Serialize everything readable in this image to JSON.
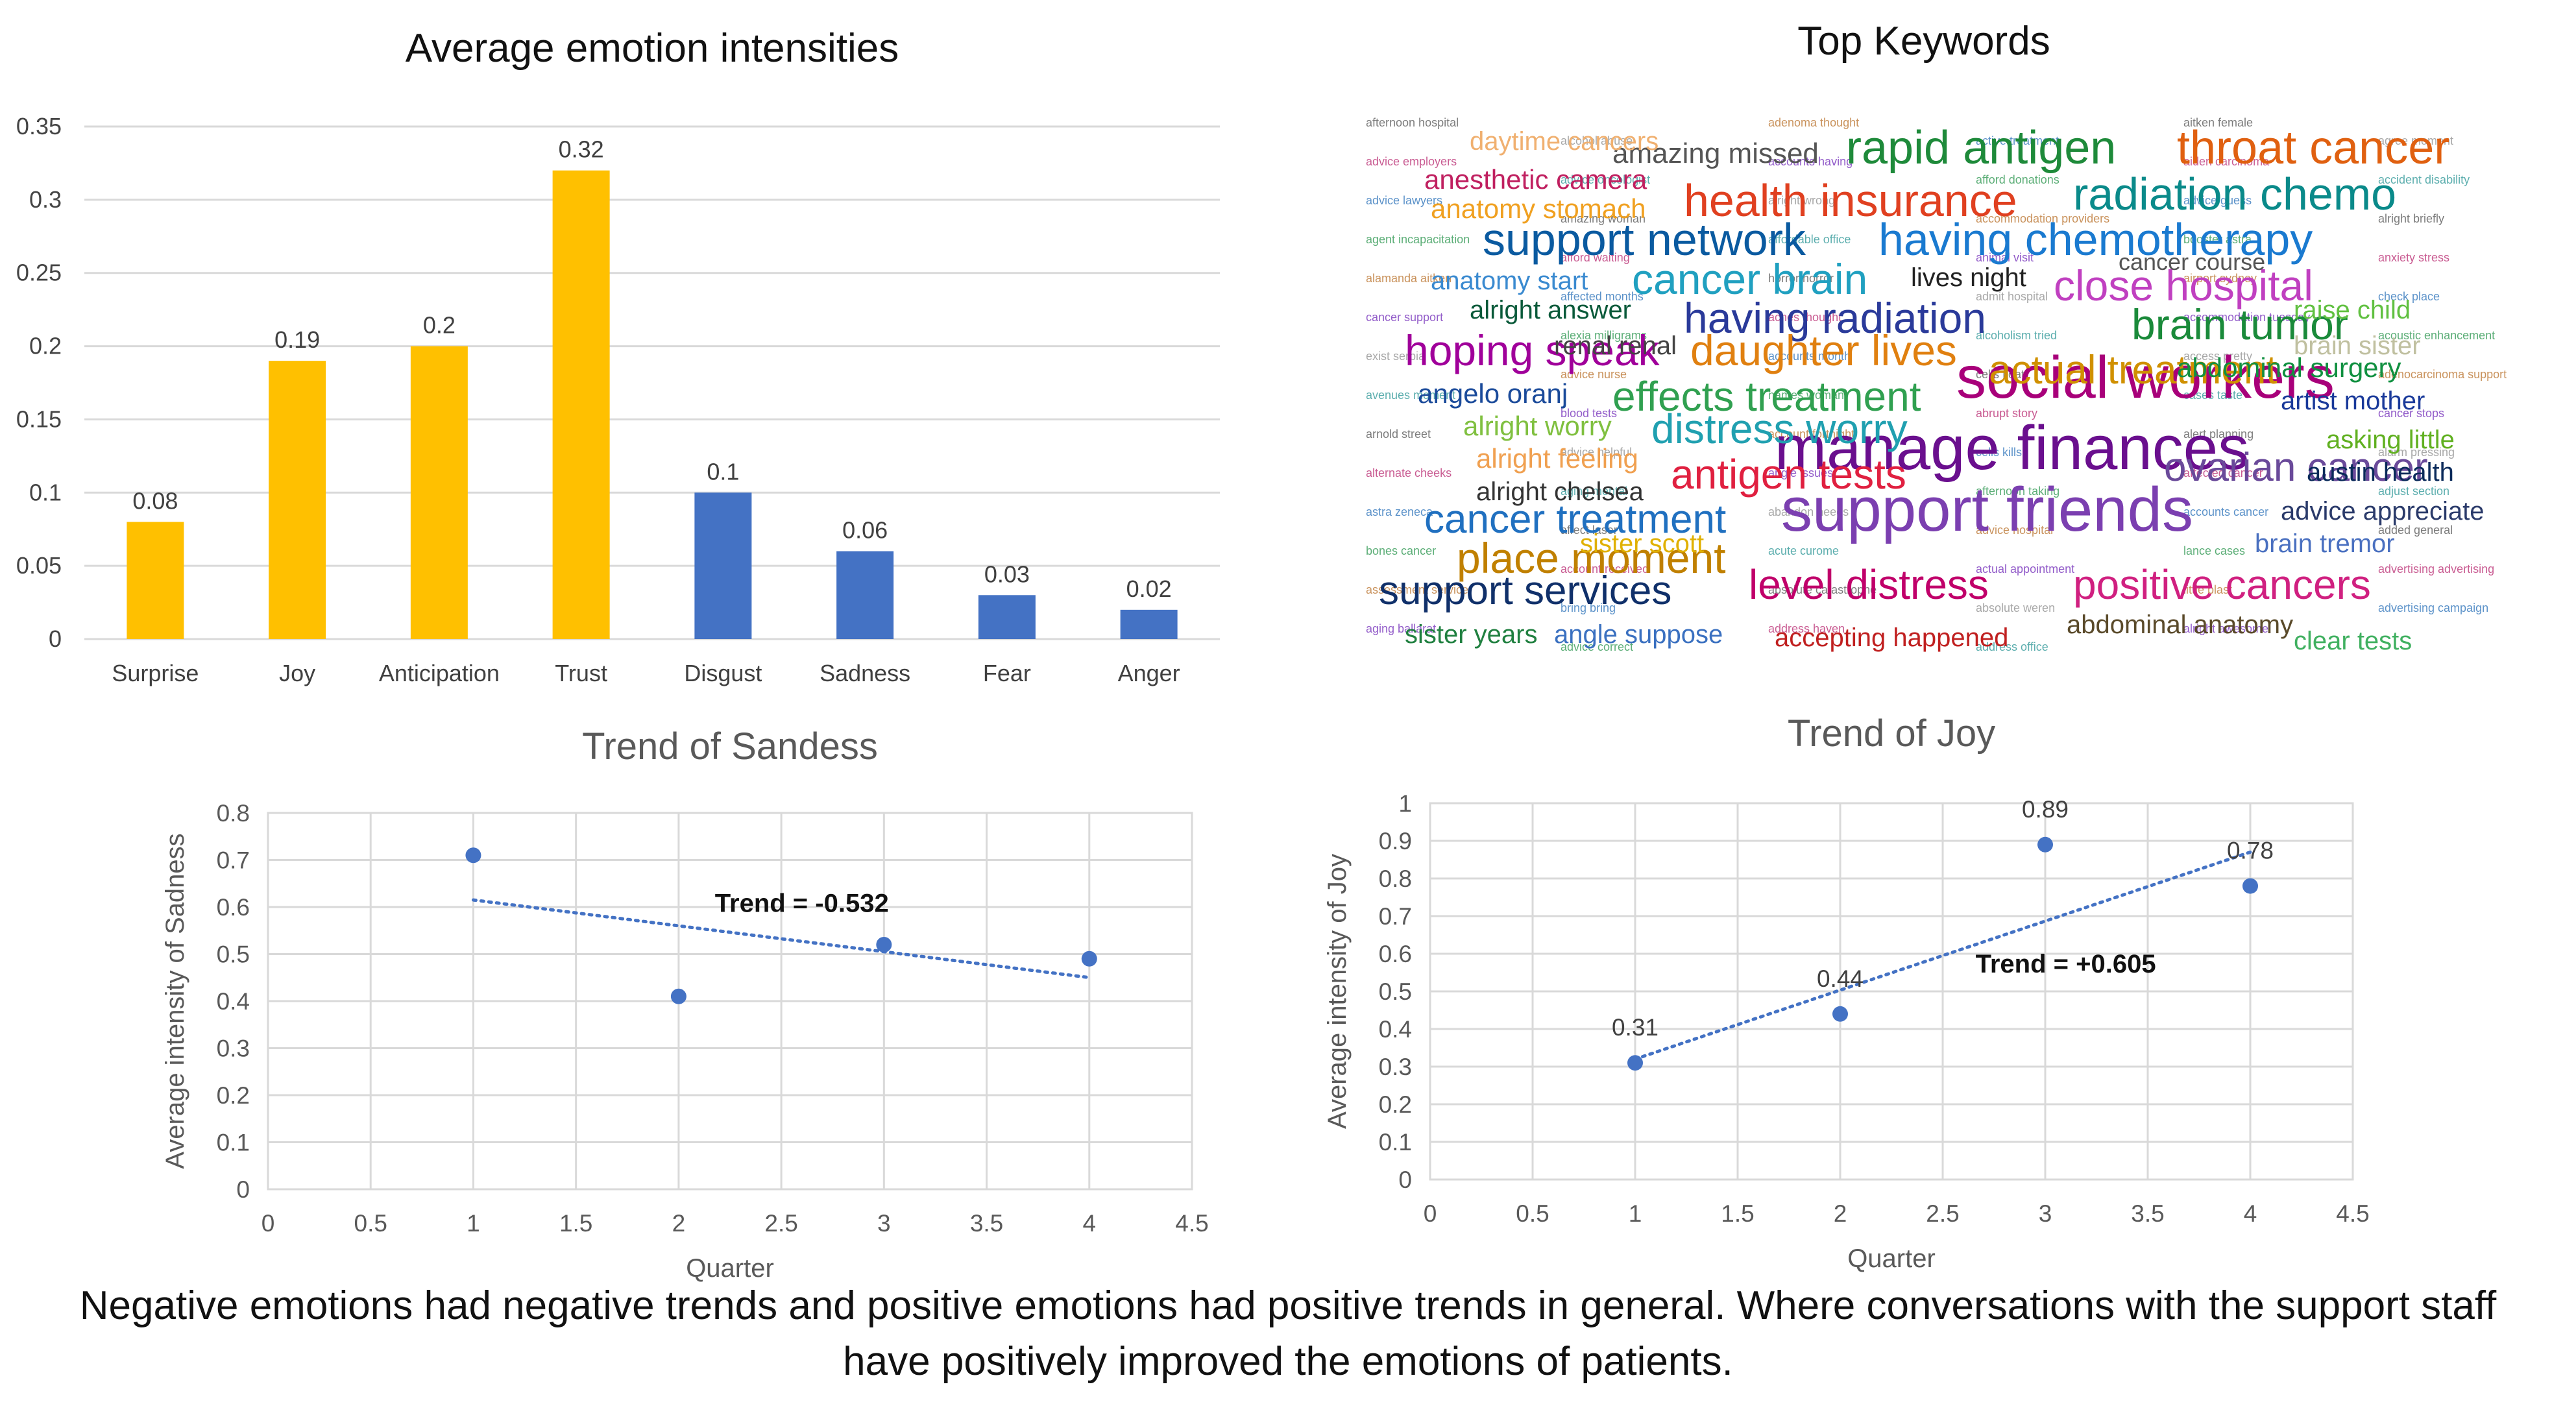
{
  "caption": "Negative emotions had negative trends and positive emotions had positive trends in general. Where conversations with the support staff have positively improved the emotions of patients.",
  "wordcloud": {
    "title": "Top Keywords",
    "words": [
      {
        "text": "manage finances",
        "color": "#6a0f8e",
        "size": 96
      },
      {
        "text": "support friends",
        "color": "#7b3fb0",
        "size": 96
      },
      {
        "text": "social workers",
        "color": "#a8007a",
        "size": 92
      },
      {
        "text": "health insurance",
        "color": "#e04020",
        "size": 70
      },
      {
        "text": "rapid antigen",
        "color": "#1e8a3a",
        "size": 72
      },
      {
        "text": "throat cancer",
        "color": "#e06010",
        "size": 72
      },
      {
        "text": "radiation chemo",
        "color": "#0a8a8a",
        "size": 70
      },
      {
        "text": "support network",
        "color": "#0a5aa0",
        "size": 70
      },
      {
        "text": "having chemotherapy",
        "color": "#1a7ad0",
        "size": 70
      },
      {
        "text": "cancer brain",
        "color": "#20a0c0",
        "size": 66
      },
      {
        "text": "close hospital",
        "color": "#c040c0",
        "size": 66
      },
      {
        "text": "having radiation",
        "color": "#2a3a9a",
        "size": 66
      },
      {
        "text": "brain tumor",
        "color": "#1a8a3a",
        "size": 66
      },
      {
        "text": "hoping speak",
        "color": "#a0009a",
        "size": 66
      },
      {
        "text": "daughter lives",
        "color": "#e08010",
        "size": 66
      },
      {
        "text": "actual treatment",
        "color": "#d09000",
        "size": 62
      },
      {
        "text": "effects treatment",
        "color": "#30a050",
        "size": 64
      },
      {
        "text": "distress worry",
        "color": "#20a0b0",
        "size": 64
      },
      {
        "text": "antigen tests",
        "color": "#e02040",
        "size": 64
      },
      {
        "text": "ovarian cancer",
        "color": "#6a4a9a",
        "size": 62
      },
      {
        "text": "cancer treatment",
        "color": "#2070c0",
        "size": 62
      },
      {
        "text": "place moment",
        "color": "#c08000",
        "size": 66
      },
      {
        "text": "level distress",
        "color": "#c0006a",
        "size": 64
      },
      {
        "text": "positive cancers",
        "color": "#d02080",
        "size": 64
      },
      {
        "text": "support services",
        "color": "#10306a",
        "size": 62
      },
      {
        "text": "abdominal surgery",
        "color": "#109040",
        "size": 42
      },
      {
        "text": "amazing missed",
        "color": "#555555",
        "size": 44
      },
      {
        "text": "anesthetic camera",
        "color": "#c02060",
        "size": 42
      },
      {
        "text": "anatomy stomach",
        "color": "#f0a020",
        "size": 42
      },
      {
        "text": "anatomy start",
        "color": "#3a8ad0",
        "size": 40
      },
      {
        "text": "alright answer",
        "color": "#0a5a3a",
        "size": 40
      },
      {
        "text": "renal renal",
        "color": "#444444",
        "size": 40
      },
      {
        "text": "angelo oranj",
        "color": "#1a4a9a",
        "size": 42
      },
      {
        "text": "alright worry",
        "color": "#80c040",
        "size": 42
      },
      {
        "text": "alright feeling",
        "color": "#f0a050",
        "size": 42
      },
      {
        "text": "alright chelsea",
        "color": "#333333",
        "size": 40
      },
      {
        "text": "sister scott",
        "color": "#e0b000",
        "size": 40
      },
      {
        "text": "sister years",
        "color": "#208040",
        "size": 40
      },
      {
        "text": "angle suppose",
        "color": "#3a70c0",
        "size": 40
      },
      {
        "text": "accepting happened",
        "color": "#c02020",
        "size": 40
      },
      {
        "text": "abdominal anatomy",
        "color": "#5a4a2a",
        "size": 40
      },
      {
        "text": "clear tests",
        "color": "#40b060",
        "size": 40
      },
      {
        "text": "raise child",
        "color": "#60c040",
        "size": 40
      },
      {
        "text": "brain sister",
        "color": "#c0c0a0",
        "size": 40
      },
      {
        "text": "artist mother",
        "color": "#1a3a9a",
        "size": 40
      },
      {
        "text": "asking little",
        "color": "#60b020",
        "size": 40
      },
      {
        "text": "austin health",
        "color": "#0a2a5a",
        "size": 40
      },
      {
        "text": "advice appreciate",
        "color": "#2a3a6a",
        "size": 40
      },
      {
        "text": "brain tremor",
        "color": "#4a70c0",
        "size": 40
      },
      {
        "text": "lives night",
        "color": "#222222",
        "size": 40
      },
      {
        "text": "cancer course",
        "color": "#555555",
        "size": 36
      },
      {
        "text": "daytime cancers",
        "color": "#f0b070",
        "size": 40
      }
    ],
    "small_words": [
      "afternoon hospital",
      "advice employers",
      "advice lawyers",
      "agent incapacitation",
      "alamanda aitken",
      "cancer support",
      "exist serbia",
      "avenues moment",
      "arnold street",
      "alternate cheeks",
      "astra zeneca",
      "bones cancer",
      "assessment service",
      "aging ballarat",
      "alcohol abuse",
      "advice oncologist",
      "amazing woman",
      "afford waiting",
      "affected months",
      "alexia milligrams",
      "advice nurse",
      "blood tests",
      "advice helpful",
      "aging mental",
      "affect laser",
      "account received",
      "bring bring",
      "advice correct",
      "adenoma thought",
      "accounts having",
      "alright wrong",
      "affordable office",
      "horror horror",
      "aches thought",
      "accounts month",
      "names woman",
      "account fortnight",
      "angle issues",
      "abandon needs",
      "acute curome",
      "absolute catastrophe",
      "address haven",
      "active treatment",
      "afford donations",
      "accommodation providers",
      "animal visit",
      "admit hospital",
      "alcoholism tried",
      "cells float",
      "abrupt story",
      "cells kills",
      "afternoon taking",
      "advice hospital",
      "actual appointment",
      "absolute weren",
      "address office",
      "aitken female",
      "aiden carcinoma",
      "advice guess",
      "booster astra",
      "airport sydney",
      "accommodation tuesday",
      "access pretty",
      "cases taste",
      "alert planning",
      "affected cancer",
      "accounts cancer",
      "lance cases",
      "little blast",
      "alright awesome",
      "agree moment",
      "accident disability",
      "alright briefly",
      "anxiety stress",
      "check place",
      "acoustic enhancement",
      "adenocarcinoma support",
      "cancer stops",
      "alarm pressing",
      "adjust section",
      "added general",
      "advertising advertising",
      "advertising campaign"
    ]
  },
  "charts": [
    {
      "chart_data": {
        "type": "bar",
        "title": "Average emotion intensities",
        "categories": [
          "Surprise",
          "Joy",
          "Anticipation",
          "Trust",
          "Disgust",
          "Sadness",
          "Fear",
          "Anger"
        ],
        "values": [
          0.08,
          0.19,
          0.2,
          0.32,
          0.1,
          0.06,
          0.03,
          0.02
        ],
        "data_labels": [
          "0.08",
          "0.19",
          "0.2",
          "0.32",
          "0.1",
          "0.06",
          "0.03",
          "0.02"
        ],
        "bar_colors": [
          "#ffc000",
          "#ffc000",
          "#ffc000",
          "#ffc000",
          "#4472c4",
          "#4472c4",
          "#4472c4",
          "#4472c4"
        ],
        "ylim": [
          0,
          0.35
        ],
        "yticks": [
          "0",
          "0.05",
          "0.1",
          "0.15",
          "0.2",
          "0.25",
          "0.3",
          "0.35"
        ],
        "grid": true,
        "xlabel": "",
        "ylabel": ""
      }
    },
    {
      "chart_data": {
        "type": "scatter",
        "title": "Trend of Sandess",
        "xlabel": "Quarter",
        "ylabel": "Average intensity of Sadness",
        "x": [
          1,
          2,
          3,
          4
        ],
        "y": [
          0.71,
          0.41,
          0.52,
          0.49
        ],
        "point_labels": [],
        "trendline": {
          "from": [
            1,
            0.615
          ],
          "to": [
            4,
            0.45
          ]
        },
        "annotation": "Trend = -0.532",
        "annotation_at": [
          2.6,
          0.59
        ],
        "xlim": [
          0,
          4.5
        ],
        "ylim": [
          0,
          0.8
        ],
        "xticks": [
          "0",
          "0.5",
          "1",
          "1.5",
          "2",
          "2.5",
          "3",
          "3.5",
          "4",
          "4.5"
        ],
        "yticks": [
          "0",
          "0.1",
          "0.2",
          "0.3",
          "0.4",
          "0.5",
          "0.6",
          "0.7",
          "0.8"
        ],
        "grid": true,
        "color": "#4472c4"
      }
    },
    {
      "chart_data": {
        "type": "scatter",
        "title": "Trend of Joy",
        "xlabel": "Quarter",
        "ylabel": "Average intensity of Joy",
        "x": [
          1,
          2,
          3,
          4
        ],
        "y": [
          0.31,
          0.44,
          0.89,
          0.78
        ],
        "point_labels": [
          "0.31",
          "0.44",
          "0.89",
          "0.78"
        ],
        "trendline": {
          "from": [
            1,
            0.32
          ],
          "to": [
            4,
            0.87
          ]
        },
        "annotation": "Trend = +0.605",
        "annotation_at": [
          3.1,
          0.55
        ],
        "xlim": [
          0,
          4.5
        ],
        "ylim": [
          0,
          1
        ],
        "xticks": [
          "0",
          "0.5",
          "1",
          "1.5",
          "2",
          "2.5",
          "3",
          "3.5",
          "4",
          "4.5"
        ],
        "yticks": [
          "0",
          "0.1",
          "0.2",
          "0.3",
          "0.4",
          "0.5",
          "0.6",
          "0.7",
          "0.8",
          "0.9",
          "1"
        ],
        "grid": true,
        "color": "#4472c4"
      }
    }
  ]
}
